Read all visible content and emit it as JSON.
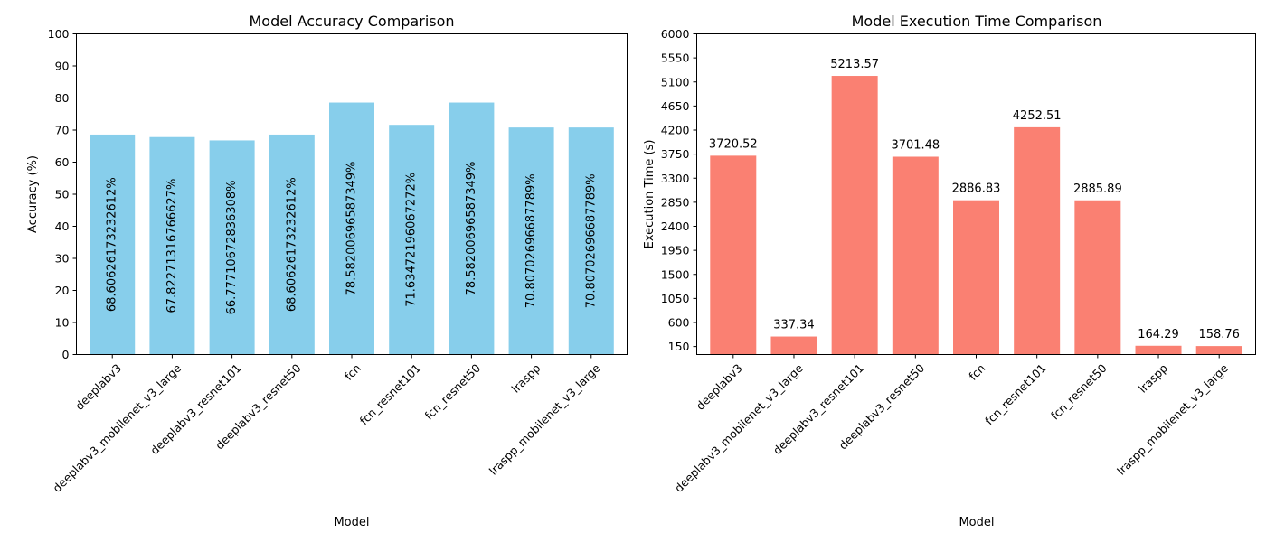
{
  "chart_data": [
    {
      "type": "bar",
      "title": "Model Accuracy Comparison",
      "xlabel": "Model",
      "ylabel": "Accuracy (%)",
      "color": "#87ceeb",
      "categories": [
        "deeplabv3",
        "deeplabv3_mobilenet_v3_large",
        "deeplabv3_resnet101",
        "deeplabv3_resnet50",
        "fcn",
        "fcn_resnet101",
        "fcn_resnet50",
        "lraspp",
        "lraspp_mobilenet_v3_large"
      ],
      "values": [
        68.6062617323261,
        67.8227131676663,
        66.7771067283631,
        68.6062617323261,
        78.5820069658735,
        71.6347219606727,
        78.5820069658735,
        70.8070269668779,
        70.8070269668779
      ],
      "value_labels": [
        "68.60626173232612%",
        "67.82271316766627%",
        "66.77710672836308%",
        "68.60626173232612%",
        "78.58200696587349%",
        "71.63472196067272%",
        "78.58200696587349%",
        "70.80702696687789%",
        "70.80702696687789%"
      ],
      "value_label_style": "vertical-inside",
      "yticks": [
        0,
        10,
        20,
        30,
        40,
        50,
        60,
        70,
        80,
        90,
        100
      ],
      "ylim": [
        0,
        100
      ],
      "grid": false
    },
    {
      "type": "bar",
      "title": "Model Execution Time Comparison",
      "xlabel": "Model",
      "ylabel": "Execution Time (s)",
      "color": "#fa8072",
      "categories": [
        "deeplabv3",
        "deeplabv3_mobilenet_v3_large",
        "deeplabv3_resnet101",
        "deeplabv3_resnet50",
        "fcn",
        "fcn_resnet101",
        "fcn_resnet50",
        "lraspp",
        "lraspp_mobilenet_v3_large"
      ],
      "values": [
        3720.52,
        337.34,
        5213.57,
        3701.48,
        2886.83,
        4252.51,
        2885.89,
        164.29,
        158.76
      ],
      "value_labels": [
        "3720.52",
        "337.34",
        "5213.57",
        "3701.48",
        "2886.83",
        "4252.51",
        "2885.89",
        "164.29",
        "158.76"
      ],
      "value_label_style": "above",
      "yticks": [
        150,
        600,
        1050,
        1500,
        1950,
        2400,
        2850,
        3300,
        3750,
        4200,
        4650,
        5100,
        5550,
        6000
      ],
      "ylim": [
        0,
        6000
      ],
      "grid": false
    }
  ]
}
